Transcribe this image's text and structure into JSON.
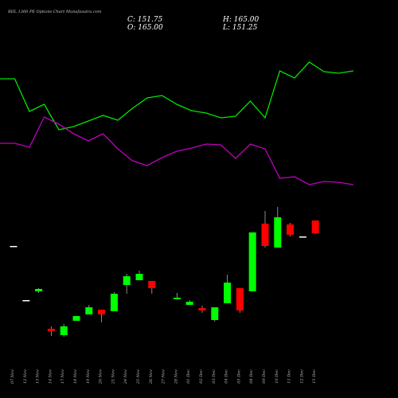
{
  "chart_data": {
    "type": "candlestick",
    "title": "RIIL 1360 PE Options Chart Munafasutra.com",
    "ohlc_display": [
      "C: 151.75",
      "H: 165.00",
      "O: 165.00",
      "L: 151.25"
    ],
    "categories": [
      "07 Nov",
      "12 Nov",
      "13 Nov",
      "14 Nov",
      "17 Nov",
      "18 Nov",
      "19 Nov",
      "20 Nov",
      "21 Nov",
      "24 Nov",
      "25 Nov",
      "26 Nov",
      "27 Nov",
      "28 Nov",
      "01 Dec",
      "02 Dec",
      "03 Dec",
      "04 Dec",
      "05 Dec",
      "08 Dec",
      "09 Dec",
      "10 Dec",
      "11 Dec",
      "12 Dec",
      "15 Dec"
    ],
    "open": [
      138.5,
      82.2,
      91.3,
      52.4,
      45.8,
      60.7,
      67.3,
      72.3,
      70.6,
      97.9,
      102.9,
      102.1,
      null,
      83.0,
      77.2,
      73.9,
      61.5,
      78.9,
      94.6,
      91.3,
      161.7,
      136.8,
      160.9,
      148.4,
      165
    ],
    "high": [
      138.5,
      82.2,
      94.6,
      54.9,
      57.4,
      65.6,
      77.2,
      72.3,
      90.5,
      109.5,
      112.8,
      102.1,
      null,
      89.7,
      82.2,
      76.4,
      74.7,
      108.7,
      94.6,
      152.6,
      174.9,
      179.1,
      162.5,
      148.4,
      165
    ],
    "low": [
      138.5,
      82.2,
      89.7,
      44.9,
      44.1,
      60.7,
      67.3,
      59.0,
      70.6,
      88.8,
      102.9,
      88.8,
      null,
      83.0,
      77.2,
      69.0,
      59.8,
      78.9,
      69.0,
      91.3,
      136.8,
      136.8,
      148.4,
      148.4,
      151.25
    ],
    "close": [
      138.5,
      82.2,
      93.8,
      49.9,
      54.9,
      65.6,
      74.7,
      67.3,
      88.8,
      107.0,
      109.5,
      94.6,
      null,
      84.7,
      80.5,
      71.4,
      74.7,
      100.4,
      71.4,
      152.6,
      138.5,
      168.3,
      150.1,
      148.4,
      151.75
    ],
    "up_color": "#00ff00",
    "down_color": "#ff0000",
    "flat_color": "#ffffff",
    "ylim": [
      13.5,
      195.6
    ],
    "series": [
      {
        "color": "#00e600",
        "axis": "y2",
        "values": [
          80.5,
          80.5,
          60,
          64.5,
          48.5,
          50.5,
          54,
          57.5,
          54.5,
          62,
          68.5,
          70,
          64.5,
          60.5,
          59,
          56,
          57,
          66.5,
          56,
          85.5,
          81,
          91,
          85,
          84,
          85.5
        ]
      },
      {
        "color": "#c000c0",
        "axis": "y2",
        "values": [
          40,
          40,
          37.5,
          56.5,
          52,
          46,
          41.5,
          46,
          36.5,
          29,
          26,
          31,
          35,
          37,
          39.5,
          39,
          30.5,
          39.5,
          36.5,
          18,
          19,
          14,
          16,
          15.5,
          14
        ]
      }
    ],
    "y2lim": [
      0,
      100
    ]
  }
}
